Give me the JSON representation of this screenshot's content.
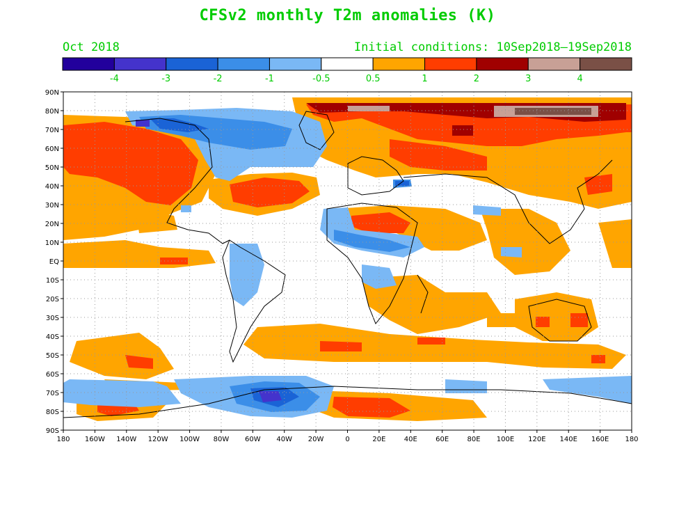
{
  "title": "CFSv2 monthly T2m anomalies (K)",
  "valid_month": "Oct 2018",
  "initial_conditions": "Initial conditions: 10Sep2018–19Sep2018",
  "colorbar": {
    "colors": [
      "#22009c",
      "#4433cc",
      "#1a63d6",
      "#3b8ee8",
      "#7ab8f5",
      "#ffffff",
      "#ffa500",
      "#ff3d00",
      "#a00000",
      "#c8a096",
      "#7a5046"
    ],
    "labels": [
      "-4",
      "-3",
      "-2",
      "-1",
      "-0.5",
      "0.5",
      "1",
      "2",
      "3",
      "4"
    ],
    "label_color": "#00cc00"
  },
  "map": {
    "lat_labels": [
      "90N",
      "80N",
      "70N",
      "60N",
      "50N",
      "40N",
      "30N",
      "20N",
      "10N",
      "EQ",
      "10S",
      "20S",
      "30S",
      "40S",
      "50S",
      "60S",
      "70S",
      "80S",
      "90S"
    ],
    "lon_labels": [
      "180",
      "160W",
      "140W",
      "120W",
      "100W",
      "80W",
      "60W",
      "40W",
      "20W",
      "0",
      "20E",
      "40E",
      "60E",
      "80E",
      "100E",
      "120E",
      "140E",
      "160E",
      "180"
    ],
    "grid": true,
    "colors": {
      "warm1": "#ffa500",
      "warm2": "#ff3d00",
      "warm3": "#a00000",
      "warm4": "#c8a096",
      "warm5": "#7a5046",
      "cool1": "#7ab8f5",
      "cool2": "#3b8ee8",
      "cool3": "#1a63d6",
      "cool4": "#4433cc"
    }
  }
}
